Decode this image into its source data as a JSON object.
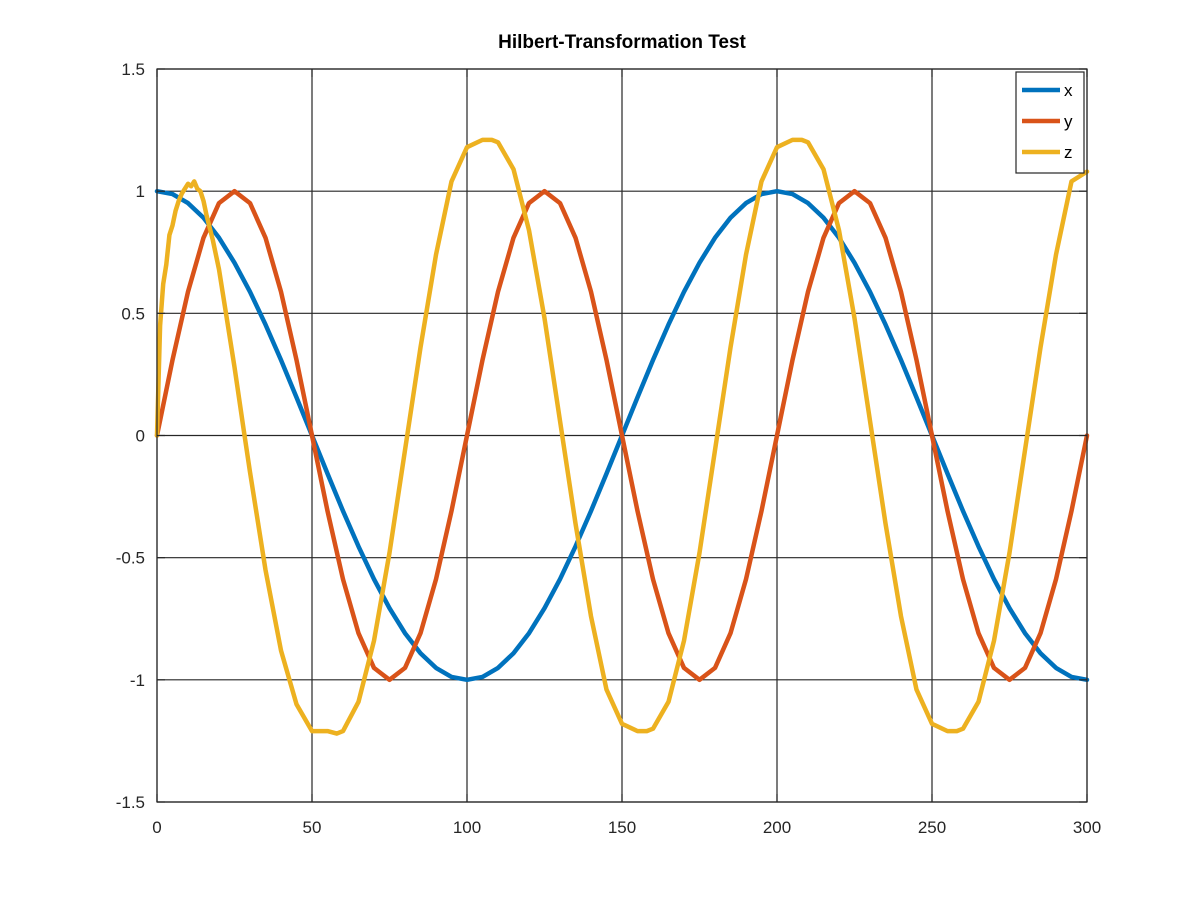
{
  "chart_data": {
    "type": "line",
    "title": "Hilbert-Transformation Test",
    "xlabel": "",
    "ylabel": "",
    "xlim": [
      0,
      300
    ],
    "ylim": [
      -1.5,
      1.5
    ],
    "x_ticks": [
      "0",
      "50",
      "100",
      "150",
      "200",
      "250",
      "300"
    ],
    "y_ticks": [
      "1.5",
      "1",
      "0.5",
      "0",
      "-0.5",
      "-1",
      "-1.5"
    ],
    "grid": true,
    "legend_position": "top-right",
    "series": [
      {
        "name": "x",
        "color": "#0072bd",
        "x": [
          0,
          5,
          10,
          15,
          20,
          25,
          30,
          35,
          40,
          45,
          50,
          55,
          60,
          65,
          70,
          75,
          80,
          85,
          90,
          95,
          100,
          105,
          110,
          115,
          120,
          125,
          130,
          135,
          140,
          145,
          150,
          155,
          160,
          165,
          170,
          175,
          180,
          185,
          190,
          195,
          200,
          205,
          210,
          215,
          220,
          225,
          230,
          235,
          240,
          245,
          250,
          255,
          260,
          265,
          270,
          275,
          280,
          285,
          290,
          295,
          300
        ],
        "values": [
          1,
          0.988,
          0.951,
          0.891,
          0.809,
          0.707,
          0.588,
          0.454,
          0.309,
          0.156,
          0,
          -0.156,
          -0.309,
          -0.454,
          -0.588,
          -0.707,
          -0.809,
          -0.891,
          -0.951,
          -0.988,
          -1,
          -0.988,
          -0.951,
          -0.891,
          -0.809,
          -0.707,
          -0.588,
          -0.454,
          -0.309,
          -0.156,
          0,
          0.156,
          0.309,
          0.454,
          0.588,
          0.707,
          0.809,
          0.891,
          0.951,
          0.988,
          1,
          0.988,
          0.951,
          0.891,
          0.809,
          0.707,
          0.588,
          0.454,
          0.309,
          0.156,
          0,
          -0.156,
          -0.309,
          -0.454,
          -0.588,
          -0.707,
          -0.809,
          -0.891,
          -0.951,
          -0.988,
          -1
        ]
      },
      {
        "name": "y",
        "color": "#d95319",
        "x": [
          0,
          5,
          10,
          15,
          20,
          25,
          30,
          35,
          40,
          45,
          50,
          55,
          60,
          65,
          70,
          75,
          80,
          85,
          90,
          95,
          100,
          105,
          110,
          115,
          120,
          125,
          130,
          135,
          140,
          145,
          150,
          155,
          160,
          165,
          170,
          175,
          180,
          185,
          190,
          195,
          200,
          205,
          210,
          215,
          220,
          225,
          230,
          235,
          240,
          245,
          250,
          255,
          260,
          265,
          270,
          275,
          280,
          285,
          290,
          295,
          300
        ],
        "values": [
          0,
          0.309,
          0.588,
          0.809,
          0.951,
          1,
          0.951,
          0.809,
          0.588,
          0.309,
          0,
          -0.309,
          -0.588,
          -0.809,
          -0.951,
          -1,
          -0.951,
          -0.809,
          -0.588,
          -0.309,
          0,
          0.309,
          0.588,
          0.809,
          0.951,
          1,
          0.951,
          0.809,
          0.588,
          0.309,
          0,
          -0.309,
          -0.588,
          -0.809,
          -0.951,
          -1,
          -0.951,
          -0.809,
          -0.588,
          -0.309,
          0,
          0.309,
          0.588,
          0.809,
          0.951,
          1,
          0.951,
          0.809,
          0.588,
          0.309,
          0,
          -0.309,
          -0.588,
          -0.809,
          -0.951,
          -1,
          -0.951,
          -0.809,
          -0.588,
          -0.309,
          0
        ]
      },
      {
        "name": "z",
        "color": "#edb120",
        "x": [
          0,
          1,
          2,
          3,
          4,
          5,
          6,
          7,
          8,
          9,
          10,
          11,
          12,
          13,
          14,
          15,
          16,
          18,
          20,
          22,
          25,
          28,
          30,
          35,
          40,
          45,
          50,
          55,
          58,
          60,
          65,
          70,
          75,
          80,
          85,
          90,
          95,
          100,
          105,
          108,
          110,
          115,
          120,
          125,
          130,
          135,
          140,
          145,
          150,
          155,
          158,
          160,
          165,
          170,
          175,
          180,
          185,
          190,
          195,
          200,
          205,
          208,
          210,
          215,
          220,
          225,
          230,
          235,
          240,
          245,
          250,
          255,
          258,
          260,
          265,
          270,
          275,
          280,
          285,
          290,
          295,
          300
        ],
        "values": [
          0,
          0.45,
          0.62,
          0.7,
          0.82,
          0.86,
          0.92,
          0.96,
          0.99,
          1.01,
          1.03,
          1.02,
          1.04,
          1.01,
          1.0,
          0.96,
          0.9,
          0.8,
          0.68,
          0.52,
          0.28,
          0.02,
          -0.15,
          -0.55,
          -0.88,
          -1.1,
          -1.21,
          -1.21,
          -1.22,
          -1.21,
          -1.09,
          -0.84,
          -0.48,
          -0.06,
          0.36,
          0.74,
          1.04,
          1.18,
          1.21,
          1.21,
          1.2,
          1.09,
          0.84,
          0.48,
          0.06,
          -0.36,
          -0.74,
          -1.04,
          -1.18,
          -1.21,
          -1.21,
          -1.2,
          -1.09,
          -0.84,
          -0.48,
          -0.06,
          0.36,
          0.74,
          1.04,
          1.18,
          1.21,
          1.21,
          1.2,
          1.09,
          0.84,
          0.48,
          0.06,
          -0.36,
          -0.74,
          -1.04,
          -1.18,
          -1.21,
          -1.21,
          -1.2,
          -1.09,
          -0.84,
          -0.48,
          -0.06,
          0.36,
          0.74,
          1.04,
          1.08
        ]
      }
    ]
  }
}
